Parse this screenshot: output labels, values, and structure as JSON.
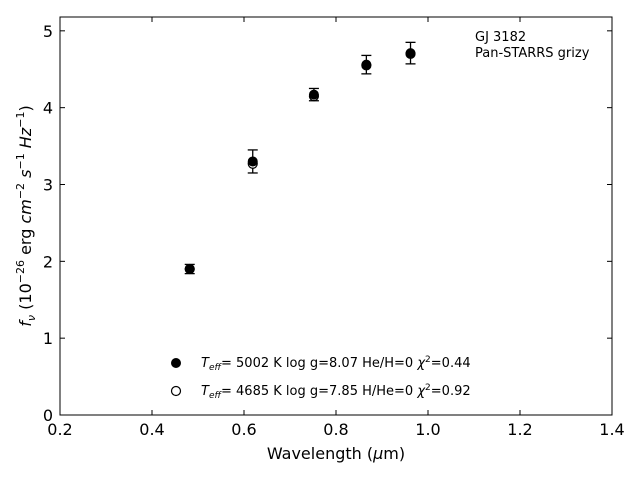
{
  "chart_data": {
    "type": "scatter",
    "xlabel": "Wavelength (μm)",
    "ylabel": "f_ν (10^-26 erg cm^-2 s^-1 Hz^-1)",
    "xlim": [
      0.2,
      1.4
    ],
    "ylim": [
      0,
      5.18
    ],
    "xticks": [
      "0.2",
      "0.4",
      "0.6",
      "0.8",
      "1.0",
      "1.2",
      "1.4"
    ],
    "yticks": [
      "0",
      "1",
      "2",
      "3",
      "4",
      "5"
    ],
    "annotation": [
      "GJ 3182",
      "Pan-STARRS grizy"
    ],
    "grid": false,
    "legend_position": "bottom-center",
    "observed": {
      "x": [
        0.482,
        0.619,
        0.752,
        0.866,
        0.962
      ],
      "y": [
        1.9,
        3.3,
        4.17,
        4.56,
        4.71
      ],
      "yerr": [
        0.06,
        0.15,
        0.08,
        0.12,
        0.14
      ]
    },
    "series": [
      {
        "marker": "filled-circle",
        "legend": {
          "teff": "5002 K",
          "logg": "log g=8.07",
          "comp": "He/H=0",
          "chi2": "=0.44"
        },
        "x": [
          0.482,
          0.619,
          0.752,
          0.866,
          0.962
        ],
        "y": [
          1.9,
          3.3,
          4.17,
          4.56,
          4.71
        ]
      },
      {
        "marker": "open-circle",
        "legend": {
          "teff": "4685 K",
          "logg": "log g=7.85",
          "comp": "H/He=0",
          "chi2": "=0.92"
        },
        "x": [
          0.482,
          0.619,
          0.752,
          0.866,
          0.962
        ],
        "y": [
          1.9,
          3.27,
          4.15,
          4.55,
          4.7
        ]
      }
    ]
  }
}
